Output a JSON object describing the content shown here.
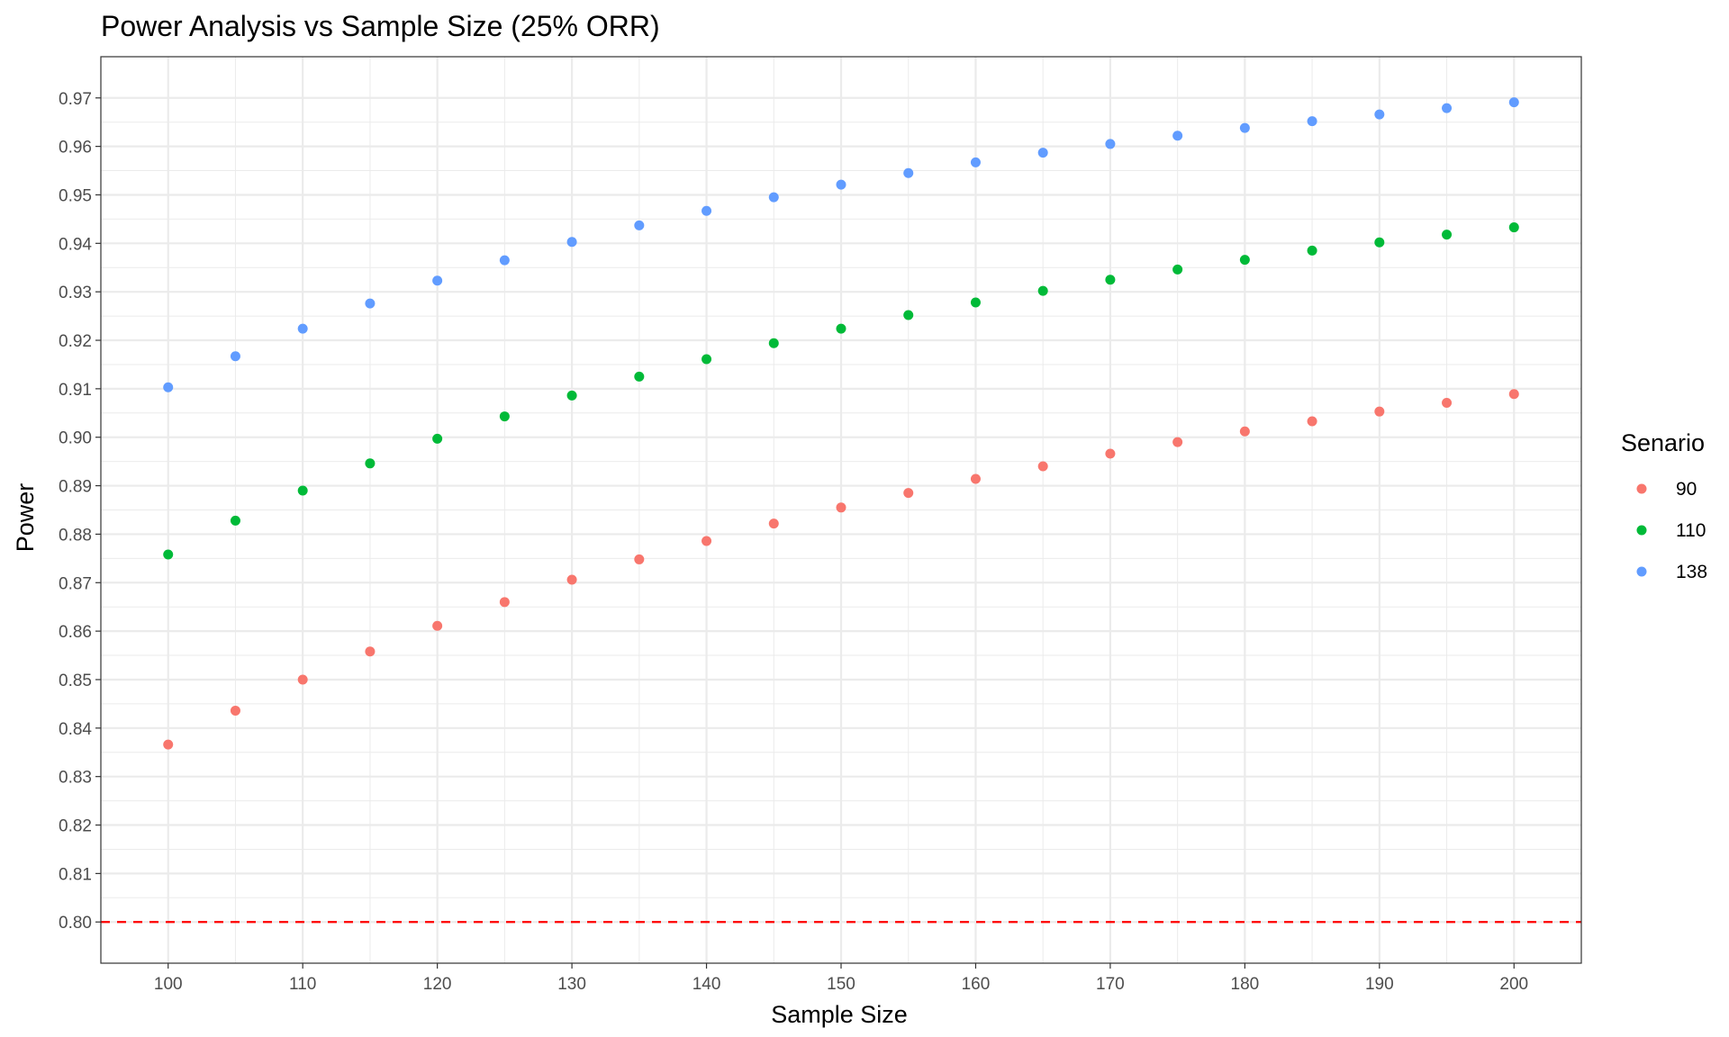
{
  "chart_data": {
    "type": "scatter",
    "title": "Power Analysis vs Sample Size (25% ORR)",
    "xlabel": "Sample Size",
    "ylabel": "Power",
    "xlim": [
      95,
      205
    ],
    "ylim": [
      0.7915,
      0.9785
    ],
    "x_ticks": [
      100,
      110,
      120,
      130,
      140,
      150,
      160,
      170,
      180,
      190,
      200
    ],
    "y_ticks": [
      0.8,
      0.81,
      0.82,
      0.83,
      0.84,
      0.85,
      0.86,
      0.87,
      0.88,
      0.89,
      0.9,
      0.91,
      0.92,
      0.93,
      0.94,
      0.95,
      0.96,
      0.97
    ],
    "y_tick_labels": [
      "0.80",
      "0.81",
      "0.82",
      "0.83",
      "0.84",
      "0.85",
      "0.86",
      "0.87",
      "0.88",
      "0.89",
      "0.90",
      "0.91",
      "0.92",
      "0.93",
      "0.94",
      "0.95",
      "0.96",
      "0.97"
    ],
    "grid": true,
    "legend": {
      "title": "Senario",
      "position": "right"
    },
    "reference_line": {
      "y": 0.8,
      "color": "#ff0000",
      "style": "dashed"
    },
    "x": [
      100,
      105,
      110,
      115,
      120,
      125,
      130,
      135,
      140,
      145,
      150,
      155,
      160,
      165,
      170,
      175,
      180,
      185,
      190,
      195,
      200
    ],
    "series": [
      {
        "name": "90",
        "color": "#f8766d",
        "values": [
          0.8366,
          0.8436,
          0.85,
          0.8558,
          0.8611,
          0.866,
          0.8706,
          0.8748,
          0.8786,
          0.8822,
          0.8855,
          0.8885,
          0.8914,
          0.894,
          0.8966,
          0.899,
          0.9012,
          0.9033,
          0.9053,
          0.9071,
          0.9089
        ]
      },
      {
        "name": "110",
        "color": "#00ba38",
        "values": [
          0.8758,
          0.8828,
          0.889,
          0.8946,
          0.8997,
          0.9043,
          0.9086,
          0.9125,
          0.9161,
          0.9194,
          0.9224,
          0.9252,
          0.9278,
          0.9302,
          0.9325,
          0.9346,
          0.9366,
          0.9385,
          0.9402,
          0.9418,
          0.9433
        ]
      },
      {
        "name": "138",
        "color": "#619cff",
        "values": [
          0.9103,
          0.9167,
          0.9224,
          0.9276,
          0.9323,
          0.9365,
          0.9403,
          0.9437,
          0.9467,
          0.9495,
          0.9521,
          0.9545,
          0.9567,
          0.9587,
          0.9605,
          0.9622,
          0.9638,
          0.9652,
          0.9666,
          0.9679,
          0.9691
        ]
      }
    ]
  }
}
